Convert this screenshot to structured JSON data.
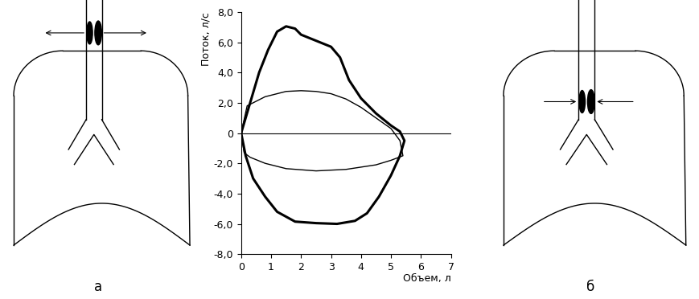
{
  "chart_data": {
    "type": "line",
    "x_label": "Объем, л",
    "y_label": "Поток, л/с",
    "series": [
      {
        "color": "#000000",
        "line_style": "solid",
        "x": [
          0,
          0.3,
          0.6,
          0.9,
          1.2,
          1.5,
          1.8,
          2.0,
          2.5,
          3.0,
          3.3,
          3.6,
          4.0,
          4.5,
          5.0,
          5.3,
          5.45,
          5.3,
          5.0,
          4.6,
          4.2,
          3.8,
          3.2,
          2.5,
          1.8,
          1.2,
          0.8,
          0.4,
          0.15,
          0
        ],
        "values": [
          0,
          2.0,
          4.0,
          5.5,
          6.7,
          7.05,
          6.9,
          6.5,
          6.1,
          5.7,
          5.0,
          3.5,
          2.3,
          1.3,
          0.5,
          0.1,
          -0.5,
          -1.5,
          -2.8,
          -4.2,
          -5.3,
          -5.8,
          -6.0,
          -5.95,
          -5.85,
          -5.2,
          -4.2,
          -3.0,
          -1.5,
          0
        ]
      },
      {
        "color": "#000000",
        "line_style": "solid",
        "x": [
          0,
          0.2,
          0.8,
          1.5,
          2.0,
          2.5,
          3.0,
          3.5,
          4.0,
          4.5,
          5.0,
          5.3,
          5.4,
          5.0,
          4.5,
          3.5,
          2.5,
          1.5,
          0.8,
          0.3,
          0.1,
          0
        ],
        "values": [
          0,
          1.8,
          2.4,
          2.75,
          2.8,
          2.75,
          2.6,
          2.25,
          1.7,
          1.0,
          0.3,
          -0.5,
          -1.5,
          -1.8,
          -2.1,
          -2.4,
          -2.5,
          -2.35,
          -2.0,
          -1.6,
          -1.3,
          0
        ]
      }
    ],
    "xlim": [
      0,
      7
    ],
    "xticks": [
      0,
      1,
      2,
      3,
      4,
      5,
      6,
      7
    ],
    "ylim": [
      -8,
      8
    ],
    "yticks": [
      {
        "value": -8,
        "label": "-8,0"
      },
      {
        "value": -6,
        "label": "-6,0"
      },
      {
        "value": -4,
        "label": "-4,0"
      },
      {
        "value": -2,
        "label": "-2,0"
      },
      {
        "value": 0,
        "label": "0"
      },
      {
        "value": 2,
        "label": "2,0"
      },
      {
        "value": 4,
        "label": "4,0"
      },
      {
        "value": 6,
        "label": "6,0"
      },
      {
        "value": 8,
        "label": "8,0"
      }
    ],
    "grid": false
  },
  "diagrams": [
    {
      "label": "а"
    },
    {
      "label": "б"
    }
  ]
}
